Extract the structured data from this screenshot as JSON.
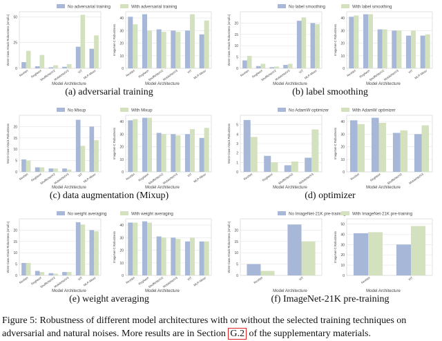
{
  "colors": {
    "no": "#a6b7d7",
    "with": "#d4e1be",
    "grid": "#e4e4e4",
    "axis": "#cfcfcf"
  },
  "figure_caption": {
    "text_before": "Figure 5: Robustness of different model architectures with or without the selected training techniques on adversarial and natural noises. More results are in Section ",
    "ref": "G.2",
    "text_after": " of the supplementary materials."
  },
  "chart_data": [
    {
      "type": "bar",
      "subcaption": "(a) adversarial training",
      "legend": [
        "No adversarial training",
        "With adversarial training"
      ],
      "left": {
        "ylabel": "Worst-Case Attack Robustness (small c)",
        "ylim": [
          0,
          55
        ],
        "ticks": [
          0,
          25,
          50
        ],
        "categories": [
          "ResNet",
          "RegNetX",
          "ShuffleNetV2",
          "MobileNetV3",
          "ViT",
          "MLP-Mixer"
        ],
        "series": [
          {
            "values": [
              6,
              2,
              1,
              1.5,
              21,
              19
            ]
          },
          {
            "values": [
              17,
              13,
              3,
              4,
              52,
              32
            ]
          }
        ]
      },
      "right": {
        "ylabel": "ImageNet-C Robustness",
        "ylim": [
          0,
          45
        ],
        "ticks": [
          0,
          10,
          20,
          30,
          40
        ],
        "categories": [
          "ResNet",
          "RegNetX",
          "ShuffleNetV2",
          "MobileNetV3",
          "ViT",
          "MLP-Mixer"
        ],
        "series": [
          {
            "values": [
              41,
              43,
              31,
              30,
              30,
              27
            ]
          },
          {
            "values": [
              35,
              30,
              29,
              29,
              43,
              38
            ]
          }
        ]
      },
      "xlabel": "Model Architecture"
    },
    {
      "type": "bar",
      "subcaption": "(b) label smoothing",
      "legend": [
        "No label smoothing",
        "With label smoothing"
      ],
      "left": {
        "ylabel": "Worst-Case Attack Robustness (small c)",
        "ylim": [
          0,
          25
        ],
        "ticks": [
          0,
          5,
          10,
          15,
          20
        ],
        "categories": [
          "ResNet",
          "RegNetX",
          "ShuffleNetV2",
          "MobileNetV3",
          "ViT",
          "MLP-Mixer"
        ],
        "series": [
          {
            "values": [
              3.5,
              1,
              0.5,
              1.5,
              21,
              20
            ]
          },
          {
            "values": [
              5.5,
              2,
              0.8,
              2,
              22.5,
              19.5
            ]
          }
        ]
      },
      "right": {
        "ylabel": "ImageNet-C Robustness",
        "ylim": [
          0,
          45
        ],
        "ticks": [
          0,
          10,
          20,
          30,
          40
        ],
        "categories": [
          "ResNet",
          "RegNetX",
          "ShuffleNetV2",
          "MobileNetV3",
          "ViT",
          "MLP-Mixer"
        ],
        "series": [
          {
            "values": [
              41,
              43,
              31,
              30,
              26,
              26
            ]
          },
          {
            "values": [
              42,
              43,
              31,
              30,
              30,
              27
            ]
          }
        ]
      },
      "xlabel": "Model Architecture"
    },
    {
      "type": "bar",
      "subcaption": "(c) data augmentation (Mixup)",
      "legend": [
        "No Mixup",
        "With Mixup"
      ],
      "left": {
        "ylabel": "Worst-Case Attack Robustness",
        "ylim": [
          0,
          25
        ],
        "ticks": [
          0,
          5,
          10,
          15,
          20
        ],
        "categories": [
          "ResNet",
          "RegNetX",
          "ShuffleNetV2",
          "MobileNetV3",
          "ViT",
          "MLP-Mixer"
        ],
        "series": [
          {
            "values": [
              5.5,
              2,
              1.5,
              1.5,
              23,
              20
            ]
          },
          {
            "values": [
              5,
              2,
              1.5,
              1,
              11.5,
              14
            ]
          }
        ]
      },
      "right": {
        "ylabel": "ImageNet-C Robustness",
        "ylim": [
          0,
          45
        ],
        "ticks": [
          0,
          10,
          20,
          30,
          40
        ],
        "categories": [
          "ResNet",
          "RegNetX",
          "ShuffleNetV2",
          "MobileNetV3",
          "ViT",
          "MLP-Mixer"
        ],
        "series": [
          {
            "values": [
              41,
              43,
              31,
              30,
              30,
              27
            ]
          },
          {
            "values": [
              42,
              43,
              30,
              29,
              34,
              35
            ]
          }
        ]
      },
      "xlabel": "Model Architecture"
    },
    {
      "type": "bar",
      "subcaption": "(d) optimizer",
      "legend": [
        "No AdamW optimizer",
        "With AdamW optimizer"
      ],
      "left": {
        "ylabel": "Worst-Case Attack Robustness",
        "ylim": [
          0,
          6
        ],
        "ticks": [
          0,
          1,
          2,
          3,
          4,
          5
        ],
        "categories": [
          "ResNet",
          "RegNetX",
          "ShuffleNetV2",
          "MobileNetV3"
        ],
        "series": [
          {
            "values": [
              5.5,
              1.7,
              0.7,
              1.5
            ]
          },
          {
            "values": [
              3.7,
              1,
              1.1,
              4.5
            ]
          }
        ]
      },
      "right": {
        "ylabel": "ImageNet-C Robustness",
        "ylim": [
          0,
          45
        ],
        "ticks": [
          0,
          10,
          20,
          30,
          40
        ],
        "categories": [
          "ResNet",
          "RegNetX",
          "ShuffleNetV2",
          "MobileNetV3"
        ],
        "series": [
          {
            "values": [
              41,
              43,
              31,
              30
            ]
          },
          {
            "values": [
              38,
              39,
              33,
              37
            ]
          }
        ]
      },
      "xlabel": "Model Architecture"
    },
    {
      "type": "bar",
      "subcaption": "(e) weight averaging",
      "legend": [
        "No weight averaging",
        "With weight averaging"
      ],
      "left": {
        "ylabel": "Worst-Case Attack Robustness (small c)",
        "ylim": [
          0,
          25
        ],
        "ticks": [
          0,
          5,
          10,
          15,
          20
        ],
        "categories": [
          "ResNet",
          "RegNetX",
          "ShuffleNetV2",
          "MobileNetV3",
          "ViT",
          "MLP-Mixer"
        ],
        "series": [
          {
            "values": [
              5.5,
              2,
              1,
              1.5,
              23.5,
              20
            ]
          },
          {
            "values": [
              5.5,
              1.5,
              0.8,
              1.5,
              22.5,
              19.5
            ]
          }
        ]
      },
      "right": {
        "ylabel": "ImageNet-C Robustness",
        "ylim": [
          0,
          45
        ],
        "ticks": [
          0,
          10,
          20,
          30,
          40
        ],
        "categories": [
          "ResNet",
          "RegNetX",
          "ShuffleNetV2",
          "MobileNetV3",
          "ViT",
          "MLP-Mixer"
        ],
        "series": [
          {
            "values": [
              42,
              43,
              31,
              30,
              27,
              27
            ]
          },
          {
            "values": [
              42,
              42,
              30,
              29,
              30,
              27
            ]
          }
        ]
      },
      "xlabel": "Model Architecture"
    },
    {
      "type": "bar",
      "subcaption": "(f) ImageNet-21K pre-training",
      "legend": [
        "No ImageNet-21K pre-training",
        "With ImageNet-21K pre-training"
      ],
      "left": {
        "ylabel": "Worst-Case Attack Robustness (small c)",
        "ylim": [
          0,
          25
        ],
        "ticks": [
          0,
          5,
          10,
          15,
          20
        ],
        "categories": [
          "ResNet",
          "ViT"
        ],
        "series": [
          {
            "values": [
              5,
              22.5
            ]
          },
          {
            "values": [
              2,
              15
            ]
          }
        ]
      },
      "right": {
        "ylabel": "ImageNet-C Robustness",
        "ylim": [
          0,
          55
        ],
        "ticks": [
          0,
          10,
          20,
          30,
          40,
          50
        ],
        "categories": [
          "ResNet",
          "ViT"
        ],
        "series": [
          {
            "values": [
              41,
              30
            ]
          },
          {
            "values": [
              42,
              48
            ]
          }
        ]
      },
      "xlabel": "Model Architecture"
    }
  ]
}
